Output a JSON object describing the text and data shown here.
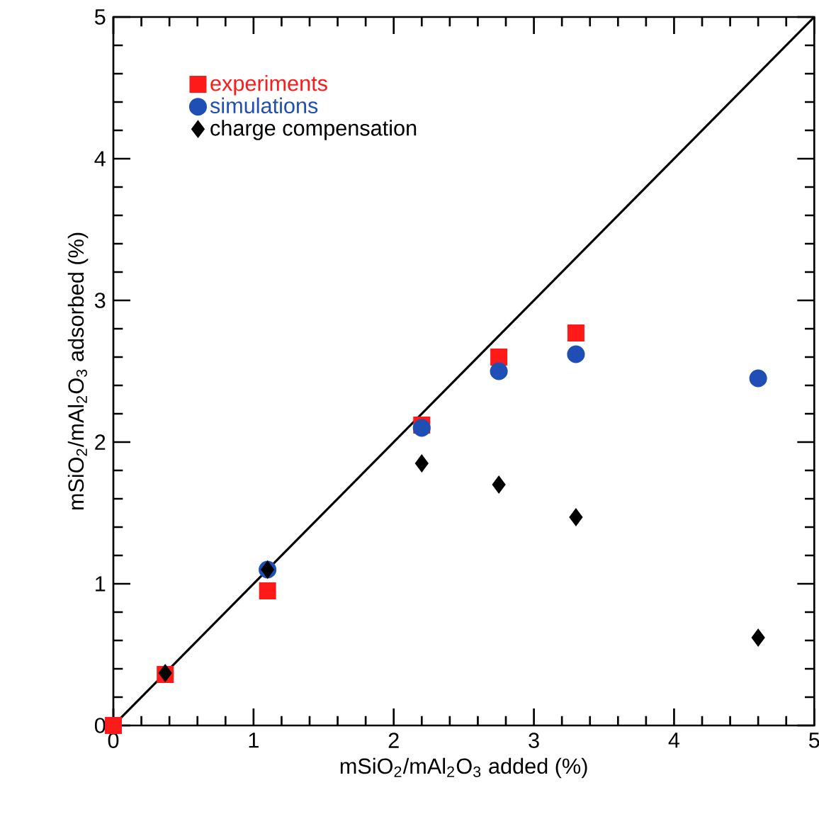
{
  "chart_data": {
    "type": "scatter",
    "xlabel": "mSiO$_{2}$/mAl$_{2}$O$_{3}$ added (%)",
    "ylabel": "mSiO$_{2}$/mAl$_{2}$O$_{3}$ adsorbed (%)",
    "xlim": [
      0,
      5
    ],
    "ylim": [
      0,
      5
    ],
    "xticks": [
      0,
      1,
      2,
      3,
      4,
      5
    ],
    "yticks": [
      0,
      1,
      2,
      3,
      4,
      5
    ],
    "legend": "top left",
    "grid": false,
    "series": [
      {
        "type": "line",
        "color": "#000000",
        "marker": "none",
        "line_style": "solid",
        "x": [
          0,
          5
        ],
        "values": [
          0,
          5
        ]
      },
      {
        "name": "experiments",
        "color": "#ff1a1a",
        "marker": "square",
        "x": [
          0,
          0.37,
          1.1,
          2.2,
          2.75,
          3.3
        ],
        "values": [
          0,
          0.36,
          0.95,
          2.12,
          2.6,
          2.77
        ]
      },
      {
        "name": "simulations",
        "color": "#1f4fb5",
        "marker": "circle",
        "x": [
          1.1,
          2.2,
          2.75,
          3.3,
          4.6
        ],
        "values": [
          1.1,
          2.1,
          2.5,
          2.62,
          2.45
        ]
      },
      {
        "name": "charge compensation",
        "color": "#000000",
        "marker": "diamond",
        "x": [
          0.37,
          1.1,
          2.2,
          2.75,
          3.3,
          4.6
        ],
        "values": [
          0.37,
          1.1,
          1.85,
          1.7,
          1.47,
          0.62
        ]
      }
    ]
  }
}
